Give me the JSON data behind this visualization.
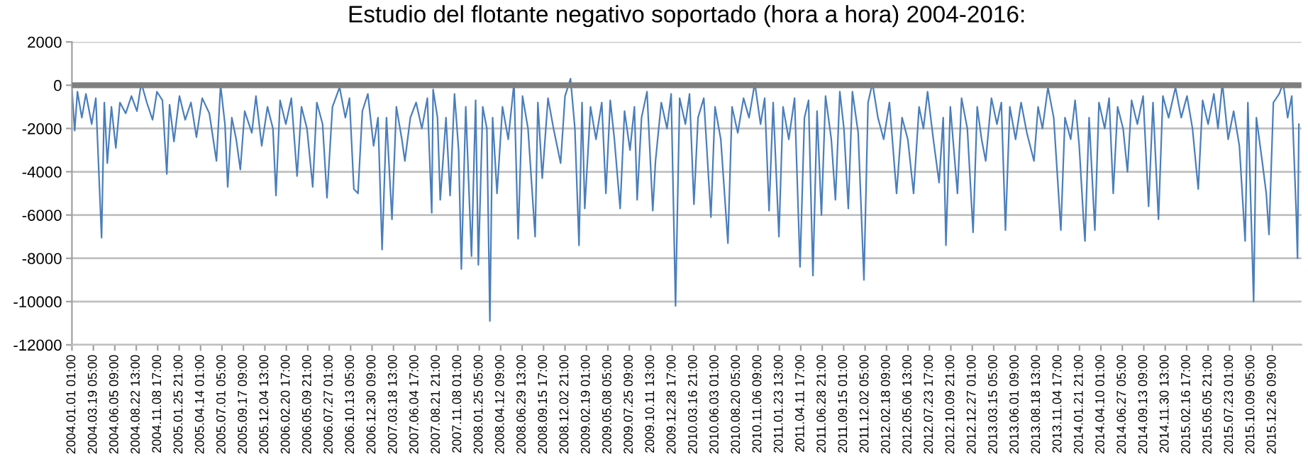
{
  "chart_data": {
    "type": "line",
    "title": "Estudio del flotante negativo soportado (hora a hora) 2004-2016:",
    "x": [
      "2004-01-01",
      "2004-01-11",
      "2004-01-21",
      "2004-02-06",
      "2004-02-21",
      "2004-03-13",
      "2004-03-28",
      "2004-04-18",
      "2004-04-28",
      "2004-05-09",
      "2004-05-24",
      "2004-06-09",
      "2004-06-24",
      "2004-07-15",
      "2004-08-05",
      "2004-08-25",
      "2004-09-10",
      "2004-09-30",
      "2004-10-21",
      "2004-11-06",
      "2004-11-26",
      "2004-12-12",
      "2004-12-22",
      "2005-01-07",
      "2005-01-27",
      "2005-02-17",
      "2005-03-10",
      "2005-03-30",
      "2005-04-20",
      "2005-05-16",
      "2005-06-11",
      "2005-06-26",
      "2005-07-12",
      "2005-07-22",
      "2005-08-06",
      "2005-08-22",
      "2005-09-06",
      "2005-09-22",
      "2005-10-18",
      "2005-11-02",
      "2005-11-23",
      "2005-12-14",
      "2006-01-03",
      "2006-01-14",
      "2006-01-29",
      "2006-02-19",
      "2006-03-11",
      "2006-04-01",
      "2006-04-17",
      "2006-05-07",
      "2006-05-28",
      "2006-06-12",
      "2006-07-03",
      "2006-07-19",
      "2006-08-08",
      "2006-09-03",
      "2006-09-24",
      "2006-10-09",
      "2006-10-25",
      "2006-11-09",
      "2006-11-25",
      "2006-12-15",
      "2007-01-05",
      "2007-01-21",
      "2007-02-05",
      "2007-02-21",
      "2007-03-13",
      "2007-03-29",
      "2007-04-18",
      "2007-04-29",
      "2007-05-19",
      "2007-06-09",
      "2007-06-30",
      "2007-07-20",
      "2007-08-05",
      "2007-08-10",
      "2007-08-26",
      "2007-09-05",
      "2007-09-26",
      "2007-10-11",
      "2007-10-27",
      "2007-11-11",
      "2007-11-21",
      "2007-12-07",
      "2007-12-28",
      "2008-01-12",
      "2008-01-22",
      "2008-02-07",
      "2008-02-22",
      "2008-03-04",
      "2008-03-14",
      "2008-03-30",
      "2008-04-19",
      "2008-05-10",
      "2008-05-31",
      "2008-06-15",
      "2008-07-01",
      "2008-07-21",
      "2008-08-16",
      "2008-08-26",
      "2008-09-11",
      "2008-10-02",
      "2008-10-22",
      "2008-11-17",
      "2008-12-03",
      "2008-12-23",
      "2009-01-08",
      "2009-01-23",
      "2009-02-03",
      "2009-02-13",
      "2009-03-06",
      "2009-03-26",
      "2009-04-16",
      "2009-05-01",
      "2009-05-17",
      "2009-06-01",
      "2009-06-22",
      "2009-07-08",
      "2009-07-28",
      "2009-08-13",
      "2009-08-23",
      "2009-09-08",
      "2009-09-28",
      "2009-10-19",
      "2009-10-29",
      "2009-11-19",
      "2009-12-10",
      "2009-12-25",
      "2010-01-10",
      "2010-01-25",
      "2010-02-15",
      "2010-03-02",
      "2010-03-18",
      "2010-04-02",
      "2010-04-23",
      "2010-05-19",
      "2010-06-03",
      "2010-06-24",
      "2010-07-20",
      "2010-08-04",
      "2010-08-25",
      "2010-09-15",
      "2010-10-05",
      "2010-10-26",
      "2010-11-16",
      "2010-12-01",
      "2010-12-17",
      "2011-01-01",
      "2011-01-22",
      "2011-02-06",
      "2011-02-27",
      "2011-03-20",
      "2011-04-09",
      "2011-04-25",
      "2011-05-10",
      "2011-05-26",
      "2011-06-10",
      "2011-06-26",
      "2011-07-11",
      "2011-08-01",
      "2011-08-16",
      "2011-09-01",
      "2011-09-16",
      "2011-10-02",
      "2011-10-17",
      "2011-11-07",
      "2011-11-28",
      "2011-12-13",
      "2011-12-29",
      "2012-01-18",
      "2012-02-08",
      "2012-02-29",
      "2012-03-26",
      "2012-04-15",
      "2012-05-06",
      "2012-05-27",
      "2012-06-16",
      "2012-07-02",
      "2012-07-17",
      "2012-08-07",
      "2012-08-28",
      "2012-09-12",
      "2012-09-22",
      "2012-10-08",
      "2012-11-03",
      "2012-11-18",
      "2012-12-09",
      "2012-12-30",
      "2013-01-14",
      "2013-01-30",
      "2013-02-14",
      "2013-03-07",
      "2013-03-27",
      "2013-04-12",
      "2013-04-27",
      "2013-05-13",
      "2013-06-03",
      "2013-06-23",
      "2013-07-14",
      "2013-08-09",
      "2013-08-24",
      "2013-09-09",
      "2013-09-29",
      "2013-10-20",
      "2013-11-15",
      "2013-11-30",
      "2013-12-21",
      "2014-01-06",
      "2014-01-21",
      "2014-02-06",
      "2014-02-11",
      "2014-02-26",
      "2014-03-19",
      "2014-04-03",
      "2014-04-24",
      "2014-05-10",
      "2014-05-25",
      "2014-06-10",
      "2014-06-30",
      "2014-07-16",
      "2014-07-31",
      "2014-08-21",
      "2014-09-11",
      "2014-10-01",
      "2014-10-17",
      "2014-11-06",
      "2014-11-22",
      "2014-12-13",
      "2015-01-07",
      "2015-01-28",
      "2015-02-18",
      "2015-03-10",
      "2015-03-31",
      "2015-04-16",
      "2015-05-06",
      "2015-05-27",
      "2015-06-11",
      "2015-06-27",
      "2015-07-18",
      "2015-08-07",
      "2015-08-28",
      "2015-09-18",
      "2015-09-28",
      "2015-10-19",
      "2015-10-29",
      "2015-11-19",
      "2015-12-04",
      "2015-12-14",
      "2015-12-30",
      "2016-01-20",
      "2016-02-04",
      "2016-02-20",
      "2016-03-06",
      "2016-03-22",
      "2016-03-27",
      "2016-04-01"
    ],
    "series": [
      {
        "color": "#4a7ebb",
        "values": [
          -200,
          -2100,
          -300,
          -1500,
          -400,
          -1800,
          -600,
          -7050,
          -800,
          -3600,
          -1000,
          -2900,
          -800,
          -1300,
          -500,
          -1200,
          100,
          -800,
          -1600,
          -300,
          -700,
          -4100,
          -900,
          -2600,
          -500,
          -1600,
          -800,
          -2400,
          -600,
          -1300,
          -3500,
          0,
          -1800,
          -4700,
          -1500,
          -2500,
          -3900,
          -1200,
          -2200,
          -500,
          -2800,
          -1000,
          -2000,
          -5100,
          -700,
          -1800,
          -600,
          -4200,
          -1000,
          -2000,
          -4700,
          -800,
          -1800,
          -5200,
          -1000,
          -100,
          -1500,
          -600,
          -4800,
          -5000,
          -1200,
          -400,
          -2800,
          -1500,
          -7600,
          -1500,
          -6200,
          -1000,
          -2500,
          -3500,
          -1500,
          -800,
          -2000,
          -600,
          -5900,
          -200,
          -1500,
          -5300,
          -1500,
          -5100,
          -400,
          -3000,
          -8500,
          -1000,
          -7900,
          -700,
          -8300,
          -1000,
          -2000,
          -10900,
          -1500,
          -5000,
          -1000,
          -2500,
          100,
          -7100,
          -500,
          -2000,
          -7000,
          -800,
          -4300,
          -600,
          -2000,
          -3600,
          -500,
          300,
          -2000,
          -7400,
          -800,
          -5700,
          -1000,
          -2500,
          -800,
          -5000,
          -700,
          -2500,
          -5700,
          -1200,
          -3000,
          -1000,
          -5300,
          -1500,
          -300,
          -5800,
          -3500,
          -800,
          -2000,
          -400,
          -10200,
          -600,
          -1800,
          -400,
          -5500,
          -1500,
          -600,
          -6100,
          -1000,
          -2500,
          -7300,
          -1000,
          -2200,
          -600,
          -1500,
          100,
          -1800,
          -600,
          -5800,
          -800,
          -7000,
          -1000,
          -2500,
          -600,
          -8400,
          -1500,
          -700,
          -8800,
          -1200,
          -6000,
          -500,
          -2500,
          -5300,
          -300,
          -2000,
          -5700,
          -300,
          -2200,
          -9000,
          -800,
          100,
          -1500,
          -2500,
          -800,
          -5000,
          -1500,
          -2500,
          -5000,
          -1000,
          -2000,
          -300,
          -2500,
          -4500,
          -1500,
          -7400,
          -1000,
          -5000,
          -600,
          -2000,
          -6800,
          -1000,
          -2500,
          -3500,
          -600,
          -1800,
          -800,
          -6700,
          -1000,
          -2500,
          -800,
          -2200,
          -3500,
          -1000,
          -2000,
          -100,
          -1500,
          -6700,
          -1500,
          -2500,
          -700,
          -2800,
          -6300,
          -7200,
          -1500,
          -6700,
          -800,
          -2000,
          -600,
          -5000,
          -1000,
          -2000,
          -4000,
          -700,
          -1800,
          -500,
          -5600,
          -800,
          -6200,
          -500,
          -1500,
          -100,
          -1500,
          -500,
          -2000,
          -4800,
          -700,
          -1800,
          -400,
          -2000,
          100,
          -2500,
          -1200,
          -2800,
          -7200,
          -800,
          -10000,
          -1500,
          -3500,
          -5000,
          -6900,
          -800,
          -400,
          100,
          -1500,
          -500,
          -5800,
          -8000,
          -1800
        ]
      }
    ],
    "xlim": [
      "2004-01-01T00:00",
      "2016-04-10T09:00"
    ],
    "xticks": [
      {
        "value": "2004-01-01T01:00",
        "label": "2004.01.01 01:00"
      },
      {
        "value": "2004-03-19T05:00",
        "label": "2004.03.19 05:00"
      },
      {
        "value": "2004-06-05T09:00",
        "label": "2004.06.05 09:00"
      },
      {
        "value": "2004-08-22T13:00",
        "label": "2004.08.22 13:00"
      },
      {
        "value": "2004-11-08T17:00",
        "label": "2004.11.08 17:00"
      },
      {
        "value": "2005-01-25T21:00",
        "label": "2005.01.25 21:00"
      },
      {
        "value": "2005-04-14T01:00",
        "label": "2005.04.14 01:00"
      },
      {
        "value": "2005-07-01T05:00",
        "label": "2005.07.01 05:00"
      },
      {
        "value": "2005-09-17T09:00",
        "label": "2005.09.17 09:00"
      },
      {
        "value": "2005-12-04T13:00",
        "label": "2005.12.04 13:00"
      },
      {
        "value": "2006-02-20T17:00",
        "label": "2006.02.20 17:00"
      },
      {
        "value": "2006-05-09T21:00",
        "label": "2006.05.09 21:00"
      },
      {
        "value": "2006-07-27T01:00",
        "label": "2006.07.27 01:00"
      },
      {
        "value": "2006-10-13T05:00",
        "label": "2006.10.13 05:00"
      },
      {
        "value": "2006-12-30T09:00",
        "label": "2006.12.30 09:00"
      },
      {
        "value": "2007-03-18T13:00",
        "label": "2007.03.18 13:00"
      },
      {
        "value": "2007-06-04T17:00",
        "label": "2007.06.04 17:00"
      },
      {
        "value": "2007-08-21T21:00",
        "label": "2007.08.21 21:00"
      },
      {
        "value": "2007-11-08T01:00",
        "label": "2007.11.08 01:00"
      },
      {
        "value": "2008-01-25T05:00",
        "label": "2008.01.25 05:00"
      },
      {
        "value": "2008-04-12T09:00",
        "label": "2008.04.12 09:00"
      },
      {
        "value": "2008-06-29T13:00",
        "label": "2008.06.29 13:00"
      },
      {
        "value": "2008-09-15T17:00",
        "label": "2008.09.15 17:00"
      },
      {
        "value": "2008-12-02T21:00",
        "label": "2008.12.02 21:00"
      },
      {
        "value": "2009-02-19T01:00",
        "label": "2009.02.19 01:00"
      },
      {
        "value": "2009-05-08T05:00",
        "label": "2009.05.08 05:00"
      },
      {
        "value": "2009-07-25T09:00",
        "label": "2009.07.25 09:00"
      },
      {
        "value": "2009-10-11T13:00",
        "label": "2009.10.11 13:00"
      },
      {
        "value": "2009-12-28T17:00",
        "label": "2009.12.28 17:00"
      },
      {
        "value": "2010-03-16T21:00",
        "label": "2010.03.16 21:00"
      },
      {
        "value": "2010-06-03T01:00",
        "label": "2010.06.03 01:00"
      },
      {
        "value": "2010-08-20T05:00",
        "label": "2010.08.20 05:00"
      },
      {
        "value": "2010-11-06T09:00",
        "label": "2010.11.06 09:00"
      },
      {
        "value": "2011-01-23T13:00",
        "label": "2011.01.23 13:00"
      },
      {
        "value": "2011-04-11T17:00",
        "label": "2011.04.11 17:00"
      },
      {
        "value": "2011-06-28T21:00",
        "label": "2011.06.28 21:00"
      },
      {
        "value": "2011-09-15T01:00",
        "label": "2011.09.15 01:00"
      },
      {
        "value": "2011-12-02T05:00",
        "label": "2011.12.02 05:00"
      },
      {
        "value": "2012-02-18T09:00",
        "label": "2012.02.18 09:00"
      },
      {
        "value": "2012-05-06T13:00",
        "label": "2012.05.06 13:00"
      },
      {
        "value": "2012-07-23T17:00",
        "label": "2012.07.23 17:00"
      },
      {
        "value": "2012-10-09T21:00",
        "label": "2012.10.09 21:00"
      },
      {
        "value": "2012-12-27T01:00",
        "label": "2012.12.27 01:00"
      },
      {
        "value": "2013-03-15T05:00",
        "label": "2013.03.15 05:00"
      },
      {
        "value": "2013-06-01T09:00",
        "label": "2013.06.01 09:00"
      },
      {
        "value": "2013-08-18T13:00",
        "label": "2013.08.18 13:00"
      },
      {
        "value": "2013-11-04T17:00",
        "label": "2013.11.04 17:00"
      },
      {
        "value": "2014-01-21T21:00",
        "label": "2014.01.21 21:00"
      },
      {
        "value": "2014-04-10T01:00",
        "label": "2014.04.10 01:00"
      },
      {
        "value": "2014-06-27T05:00",
        "label": "2014.06.27 05:00"
      },
      {
        "value": "2014-09-13T09:00",
        "label": "2014.09.13 09:00"
      },
      {
        "value": "2014-11-30T13:00",
        "label": "2014.11.30 13:00"
      },
      {
        "value": "2015-02-16T17:00",
        "label": "2015.02.16 17:00"
      },
      {
        "value": "2015-05-05T21:00",
        "label": "2015.05.05 21:00"
      },
      {
        "value": "2015-07-23T01:00",
        "label": "2015.07.23 01:00"
      },
      {
        "value": "2015-10-09T05:00",
        "label": "2015.10.09 05:00"
      },
      {
        "value": "2015-12-26T09:00",
        "label": "2015.12.26 09:00"
      }
    ],
    "ylim": [
      -12000,
      2000
    ],
    "yticks": [
      -12000,
      -10000,
      -8000,
      -6000,
      -4000,
      -2000,
      0,
      2000
    ],
    "grid": "y",
    "marker": "none",
    "line_style": "solid",
    "ref_lines": [
      {
        "axis": "y",
        "value": 0,
        "color": "#7f7f7f"
      }
    ]
  }
}
